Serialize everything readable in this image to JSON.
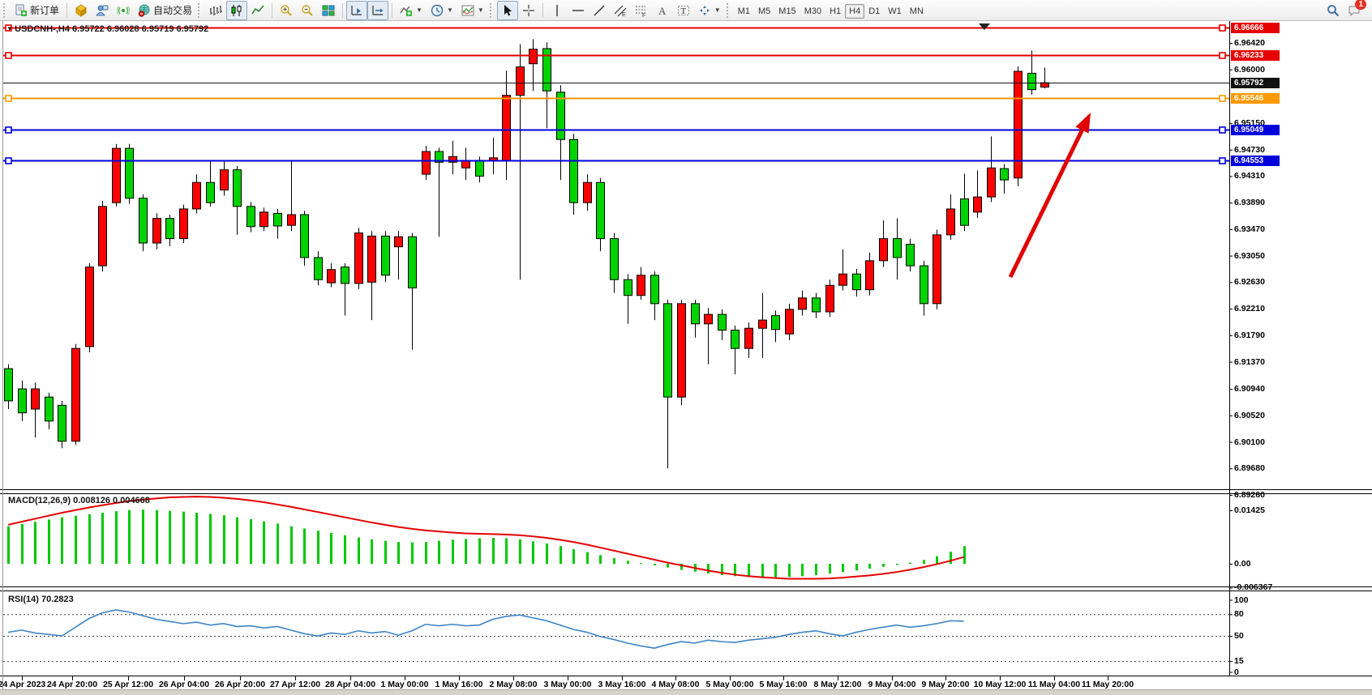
{
  "toolbar": {
    "new_order": "新订单",
    "auto_trading": "自动交易",
    "timeframes": [
      "M1",
      "M5",
      "M15",
      "M30",
      "H1",
      "H4",
      "D1",
      "W1",
      "MN"
    ],
    "active_timeframe": "H4",
    "notification_badge": "1"
  },
  "chart": {
    "title": "USDCNH-,H4  6.95722 6.96028 6.95719 6.95792",
    "symbol": "USDCNH-",
    "period": "H4",
    "price_axis_ticks": [
      "6.96420",
      "6.96000",
      "6.95150",
      "6.94730",
      "6.94310",
      "6.93890",
      "6.93470",
      "6.93050",
      "6.92630",
      "6.92210",
      "6.91790",
      "6.91370",
      "6.90940",
      "6.90520",
      "6.90100",
      "6.89680",
      "6.89260"
    ],
    "time_axis_labels": [
      "24 Apr 2023",
      "24 Apr 20:00",
      "25 Apr 12:00",
      "26 Apr 04:00",
      "26 Apr 20:00",
      "27 Apr 12:00",
      "28 Apr 04:00",
      "1 May 00:00",
      "1 May 16:00",
      "2 May 08:00",
      "3 May 00:00",
      "3 May 16:00",
      "4 May 08:00",
      "5 May 00:00",
      "5 May 16:00",
      "8 May 12:00",
      "9 May 04:00",
      "9 May 20:00",
      "10 May 12:00",
      "11 May 04:00",
      "11 May 20:00"
    ],
    "levels": [
      {
        "price": 6.96666,
        "label": "6.96666",
        "color": "#e60000",
        "thickness": 2,
        "handles": true
      },
      {
        "price": 6.96233,
        "label": "6.96233",
        "color": "#e60000",
        "thickness": 2,
        "handles": true
      },
      {
        "price": 6.95792,
        "label": "6.95792",
        "color": "#111111",
        "thickness": 1,
        "handles": false
      },
      {
        "price": 6.95546,
        "label": "6.95546",
        "color": "#ff9900",
        "thickness": 2,
        "handles": true
      },
      {
        "price": 6.95049,
        "label": "6.95049",
        "color": "#0000dd",
        "thickness": 2,
        "handles": true
      },
      {
        "price": 6.94553,
        "label": "6.94553",
        "color": "#0000dd",
        "thickness": 2,
        "handles": true
      }
    ]
  },
  "chart_data": {
    "type": "candlestick",
    "symbol": "USDCNH-",
    "timeframe": "H4",
    "note": "red body = bullish, lime body = bearish (CN convention); candle = [bodyHigh, bodyLow, high, low, dir] dir u=red d=lime",
    "current_bar": {
      "open": 6.95722,
      "high": 6.96028,
      "low": 6.95719,
      "close": 6.95792
    },
    "ylim": [
      6.8926,
      6.96666
    ],
    "candles": [
      [
        6.9126,
        6.9075,
        6.9133,
        6.9062,
        "d"
      ],
      [
        6.9094,
        6.9056,
        6.9107,
        6.9043,
        "d"
      ],
      [
        6.9094,
        6.9062,
        6.9104,
        6.9017,
        "u"
      ],
      [
        6.9081,
        6.9043,
        6.9088,
        6.903,
        "d"
      ],
      [
        6.9068,
        6.9011,
        6.9075,
        6.9,
        "d"
      ],
      [
        6.9158,
        6.9011,
        6.9165,
        6.9005,
        "u"
      ],
      [
        6.9287,
        6.9161,
        6.9293,
        6.9152,
        "u"
      ],
      [
        6.9383,
        6.9289,
        6.9392,
        6.928,
        "u"
      ],
      [
        6.9475,
        6.9389,
        6.9482,
        6.9383,
        "u"
      ],
      [
        6.9475,
        6.9396,
        6.9482,
        6.9387,
        "d"
      ],
      [
        6.9396,
        6.9325,
        6.9402,
        6.9312,
        "d"
      ],
      [
        6.9364,
        6.9325,
        6.9372,
        6.9315,
        "u"
      ],
      [
        6.9364,
        6.9332,
        6.937,
        6.932,
        "d"
      ],
      [
        6.9379,
        6.9332,
        6.9386,
        6.9325,
        "u"
      ],
      [
        6.9421,
        6.9379,
        6.9434,
        6.9372,
        "u"
      ],
      [
        6.9421,
        6.9389,
        6.9456,
        6.9383,
        "d"
      ],
      [
        6.9441,
        6.9409,
        6.9454,
        6.94,
        "u"
      ],
      [
        6.9441,
        6.9383,
        6.9447,
        6.9338,
        "d"
      ],
      [
        6.9383,
        6.9351,
        6.939,
        6.9342,
        "d"
      ],
      [
        6.9374,
        6.9351,
        6.9381,
        6.9344,
        "u"
      ],
      [
        6.9372,
        6.9352,
        6.9379,
        6.9332,
        "d"
      ],
      [
        6.937,
        6.9353,
        6.9456,
        6.9344,
        "u"
      ],
      [
        6.937,
        6.9302,
        6.9376,
        6.9289,
        "d"
      ],
      [
        6.9302,
        6.9267,
        6.9312,
        6.9258,
        "d"
      ],
      [
        6.9283,
        6.9262,
        6.9293,
        6.9255,
        "u"
      ],
      [
        6.9287,
        6.9261,
        6.9293,
        6.921,
        "d"
      ],
      [
        6.9341,
        6.9261,
        6.9349,
        6.9252,
        "u"
      ],
      [
        6.9336,
        6.9263,
        6.9344,
        6.9203,
        "u"
      ],
      [
        6.9336,
        6.9274,
        6.9344,
        6.9263,
        "d"
      ],
      [
        6.9335,
        6.9319,
        6.9344,
        6.9267,
        "u"
      ],
      [
        6.9335,
        6.9254,
        6.9341,
        6.9156,
        "d"
      ],
      [
        6.947,
        6.9434,
        6.9479,
        6.9425,
        "u"
      ],
      [
        6.947,
        6.9453,
        6.9476,
        6.9335,
        "d"
      ],
      [
        6.9462,
        6.9453,
        6.9487,
        6.9434,
        "u"
      ],
      [
        6.9456,
        6.9444,
        6.9476,
        6.9425,
        "u"
      ],
      [
        6.9456,
        6.9431,
        6.9462,
        6.9421,
        "d"
      ],
      [
        6.946,
        6.9455,
        6.9492,
        6.9434,
        "u"
      ],
      [
        6.9559,
        6.9456,
        6.9598,
        6.9425,
        "u"
      ],
      [
        6.9604,
        6.9559,
        6.964,
        6.9267,
        "u"
      ],
      [
        6.9632,
        6.9609,
        6.9648,
        6.9566,
        "u"
      ],
      [
        6.9633,
        6.9566,
        6.9643,
        6.9507,
        "d"
      ],
      [
        6.9564,
        6.9489,
        6.9575,
        6.9425,
        "d"
      ],
      [
        6.9489,
        6.9389,
        6.9498,
        6.937,
        "d"
      ],
      [
        6.9421,
        6.9389,
        6.9434,
        6.9376,
        "u"
      ],
      [
        6.9421,
        6.9332,
        6.9428,
        6.9312,
        "d"
      ],
      [
        6.9332,
        6.9267,
        6.9341,
        6.9246,
        "d"
      ],
      [
        6.9267,
        6.9242,
        6.9276,
        6.9197,
        "d"
      ],
      [
        6.9274,
        6.9242,
        6.9287,
        6.9235,
        "u"
      ],
      [
        6.9274,
        6.9229,
        6.928,
        6.9203,
        "d"
      ],
      [
        6.9229,
        6.9081,
        6.9235,
        6.8968,
        "d"
      ],
      [
        6.9229,
        6.9081,
        6.9235,
        6.9068,
        "u"
      ],
      [
        6.9229,
        6.9197,
        6.9235,
        6.9175,
        "d"
      ],
      [
        6.9212,
        6.9197,
        6.9222,
        6.9133,
        "u"
      ],
      [
        6.9212,
        6.9187,
        6.922,
        6.9171,
        "d"
      ],
      [
        6.9187,
        6.9158,
        6.9194,
        6.9117,
        "d"
      ],
      [
        6.919,
        6.9158,
        6.9199,
        6.9143,
        "u"
      ],
      [
        6.9203,
        6.919,
        6.9246,
        6.9143,
        "u"
      ],
      [
        6.921,
        6.9188,
        6.9218,
        6.9168,
        "d"
      ],
      [
        6.922,
        6.9181,
        6.9229,
        6.9171,
        "u"
      ],
      [
        6.9238,
        6.922,
        6.925,
        6.921,
        "u"
      ],
      [
        6.9238,
        6.9216,
        6.9246,
        6.9206,
        "d"
      ],
      [
        6.9258,
        6.9216,
        6.9267,
        6.9208,
        "u"
      ],
      [
        6.9276,
        6.9258,
        6.9315,
        6.925,
        "u"
      ],
      [
        6.9276,
        6.9251,
        6.9284,
        6.924,
        "d"
      ],
      [
        6.9297,
        6.9251,
        6.931,
        6.9242,
        "u"
      ],
      [
        6.9332,
        6.9297,
        6.9361,
        6.9287,
        "u"
      ],
      [
        6.9332,
        6.9302,
        6.9364,
        6.9267,
        "d"
      ],
      [
        6.9323,
        6.9289,
        6.9332,
        6.928,
        "d"
      ],
      [
        6.9289,
        6.9229,
        6.9297,
        6.921,
        "d"
      ],
      [
        6.9338,
        6.9229,
        6.9346,
        6.922,
        "u"
      ],
      [
        6.9379,
        6.9338,
        6.9402,
        6.933,
        "u"
      ],
      [
        6.9395,
        6.9353,
        6.9435,
        6.9344,
        "d"
      ],
      [
        6.9398,
        6.9374,
        6.944,
        6.9365,
        "u"
      ],
      [
        6.9444,
        6.9398,
        6.9494,
        6.939,
        "u"
      ],
      [
        6.9443,
        6.9425,
        6.945,
        6.9403,
        "d"
      ],
      [
        6.9597,
        6.9428,
        6.9605,
        6.9415,
        "u"
      ],
      [
        6.9594,
        6.9568,
        6.963,
        6.956,
        "d"
      ],
      [
        6.9579,
        6.9572,
        6.9603,
        6.957,
        "u"
      ]
    ],
    "indicators": {
      "macd": {
        "label": "MACD(12,26,9)",
        "values_label": "0.008126 0.004668",
        "axis_ticks": [
          "0.01425",
          "0.00",
          "-0.006367"
        ],
        "histogram": [
          0.01,
          0.0106,
          0.0112,
          0.0118,
          0.0124,
          0.0128,
          0.0132,
          0.0136,
          0.014,
          0.0143,
          0.0144,
          0.0143,
          0.0141,
          0.0139,
          0.0136,
          0.0133,
          0.0129,
          0.0124,
          0.0119,
          0.0113,
          0.0107,
          0.01,
          0.0094,
          0.0088,
          0.0082,
          0.0076,
          0.007,
          0.0065,
          0.0061,
          0.0058,
          0.0057,
          0.0058,
          0.0061,
          0.0064,
          0.0066,
          0.0068,
          0.0069,
          0.0068,
          0.0065,
          0.006,
          0.0054,
          0.0047,
          0.0039,
          0.0031,
          0.0023,
          0.0015,
          0.0008,
          0.0002,
          -0.0004,
          -0.001,
          -0.0016,
          -0.0021,
          -0.0026,
          -0.003,
          -0.0033,
          -0.0035,
          -0.0036,
          -0.0036,
          -0.0035,
          -0.0033,
          -0.003,
          -0.0026,
          -0.0022,
          -0.0018,
          -0.0013,
          -0.0008,
          -0.0003,
          0.0003,
          0.001,
          0.002,
          0.0032,
          0.0047
        ],
        "signal": [
          0.0104,
          0.0112,
          0.012,
          0.0128,
          0.0136,
          0.0143,
          0.015,
          0.0156,
          0.0162,
          0.0167,
          0.0171,
          0.0174,
          0.0177,
          0.0178,
          0.0179,
          0.0178,
          0.0176,
          0.0173,
          0.0169,
          0.0164,
          0.0158,
          0.0152,
          0.0145,
          0.0138,
          0.0131,
          0.0124,
          0.0117,
          0.011,
          0.0104,
          0.0098,
          0.0093,
          0.0089,
          0.0086,
          0.0083,
          0.0081,
          0.008,
          0.0079,
          0.0078,
          0.0076,
          0.0073,
          0.0069,
          0.0064,
          0.0058,
          0.0051,
          0.0043,
          0.0035,
          0.0027,
          0.0019,
          0.0011,
          0.0003,
          -0.0004,
          -0.0011,
          -0.0018,
          -0.0024,
          -0.0029,
          -0.0033,
          -0.0036,
          -0.0038,
          -0.004,
          -0.004,
          -0.004,
          -0.0039,
          -0.0037,
          -0.0034,
          -0.0031,
          -0.0027,
          -0.0022,
          -0.0016,
          -0.0009,
          -0.0001,
          0.0008,
          0.0018
        ]
      },
      "rsi": {
        "label": "RSI(14)",
        "value_label": "70.2823",
        "axis_ticks": [
          "100",
          "80",
          "50",
          "15",
          "0"
        ],
        "guide_levels": [
          80,
          50,
          15
        ],
        "values": [
          55,
          58,
          54,
          52,
          50,
          62,
          74,
          82,
          86,
          83,
          78,
          73,
          70,
          67,
          69,
          65,
          67,
          63,
          64,
          61,
          63,
          58,
          53,
          50,
          54,
          52,
          57,
          54,
          56,
          51,
          57,
          66,
          64,
          66,
          64,
          65,
          73,
          77,
          79,
          75,
          71,
          65,
          59,
          55,
          49,
          45,
          40,
          36,
          33,
          38,
          42,
          40,
          44,
          42,
          41,
          44,
          46,
          48,
          52,
          55,
          57,
          53,
          50,
          55,
          59,
          62,
          65,
          62,
          64,
          67,
          71,
          70.3
        ]
      }
    },
    "colors": {
      "candle_up": "#ff0000",
      "candle_down": "#00d300",
      "wick": "#000000",
      "macd_histogram": "#00c800",
      "macd_signal": "#e60000",
      "rsi_line": "#3d85c8",
      "level_red": "#e60000",
      "level_orange": "#ff9900",
      "level_blue": "#0000dd",
      "arrow": "#e00000"
    },
    "annotations": [
      {
        "type": "arrow",
        "direction": "up-right",
        "color": "#e00000"
      }
    ]
  }
}
